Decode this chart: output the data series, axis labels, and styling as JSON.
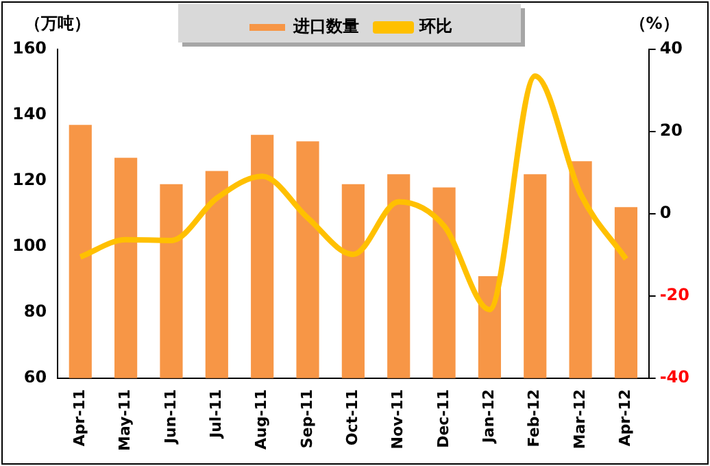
{
  "chart_data": {
    "type": "bar",
    "ylabel": "（万吨）",
    "y2label": "（%）",
    "categories": [
      "Apr-11",
      "May-11",
      "Jun-11",
      "Jul-11",
      "Aug-11",
      "Sep-11",
      "Oct-11",
      "Nov-11",
      "Dec-11",
      "Jan-12",
      "Feb-12",
      "Mar-12",
      "Apr-12"
    ],
    "series": [
      {
        "name": "进口数量",
        "color": "#f79646",
        "values": [
          137,
          127,
          119,
          123,
          134,
          132,
          119,
          122,
          118,
          91,
          122,
          126,
          112
        ]
      },
      {
        "name": "环比",
        "type": "line",
        "axis": "y2",
        "color": "#ffc000",
        "values": [
          -10.5,
          -6.3,
          -6.5,
          3.8,
          9.1,
          -1,
          -9.9,
          2.9,
          -3,
          -23.3,
          33.5,
          4.8,
          -11
        ]
      }
    ],
    "ylim": [
      60,
      160
    ],
    "yticks": [
      60,
      80,
      100,
      120,
      140,
      160
    ],
    "y2lim": [
      -40,
      40
    ],
    "y2ticks": [
      -40,
      -20,
      0,
      20,
      40
    ],
    "grid": false,
    "legend": "top",
    "marker": "none",
    "line_style": "solid"
  }
}
